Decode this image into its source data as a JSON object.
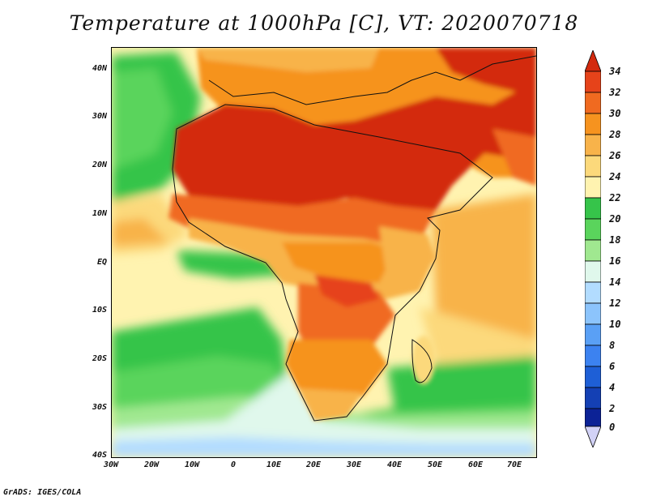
{
  "title": "Temperature at 1000hPa [C], VT: 2020070718",
  "credit": "GrADS: IGES/COLA",
  "lat_labels": [
    "40N",
    "30N",
    "20N",
    "10N",
    "EQ",
    "10S",
    "20S",
    "30S",
    "40S"
  ],
  "lon_labels": [
    "30W",
    "20W",
    "10W",
    "0",
    "10E",
    "20E",
    "30E",
    "40E",
    "50E",
    "60E",
    "70E"
  ],
  "colorbar": {
    "labels": [
      "34",
      "32",
      "30",
      "28",
      "26",
      "24",
      "22",
      "20",
      "18",
      "16",
      "14",
      "12",
      "10",
      "8",
      "6",
      "4",
      "2",
      "0"
    ],
    "colors": {
      "above_34": "#d32a0e",
      "b32_34": "#e6431a",
      "b30_32": "#f06a20",
      "b28_30": "#f6931f",
      "b26_28": "#f8b34a",
      "b24_26": "#fcd97b",
      "b22_24": "#fff3b0",
      "b20_22": "#36c44a",
      "b18_20": "#5ad45c",
      "b16_18": "#a0e890",
      "b14_16": "#e0f8ec",
      "b12_14": "#b2dcff",
      "b10_12": "#8cc4fc",
      "b8_10": "#5aa0f5",
      "b6_8": "#3c82f0",
      "b4_6": "#1e5fd6",
      "b2_4": "#1440b4",
      "b0_2": "#0c2296",
      "below_0": "#d2d2f6"
    }
  }
}
